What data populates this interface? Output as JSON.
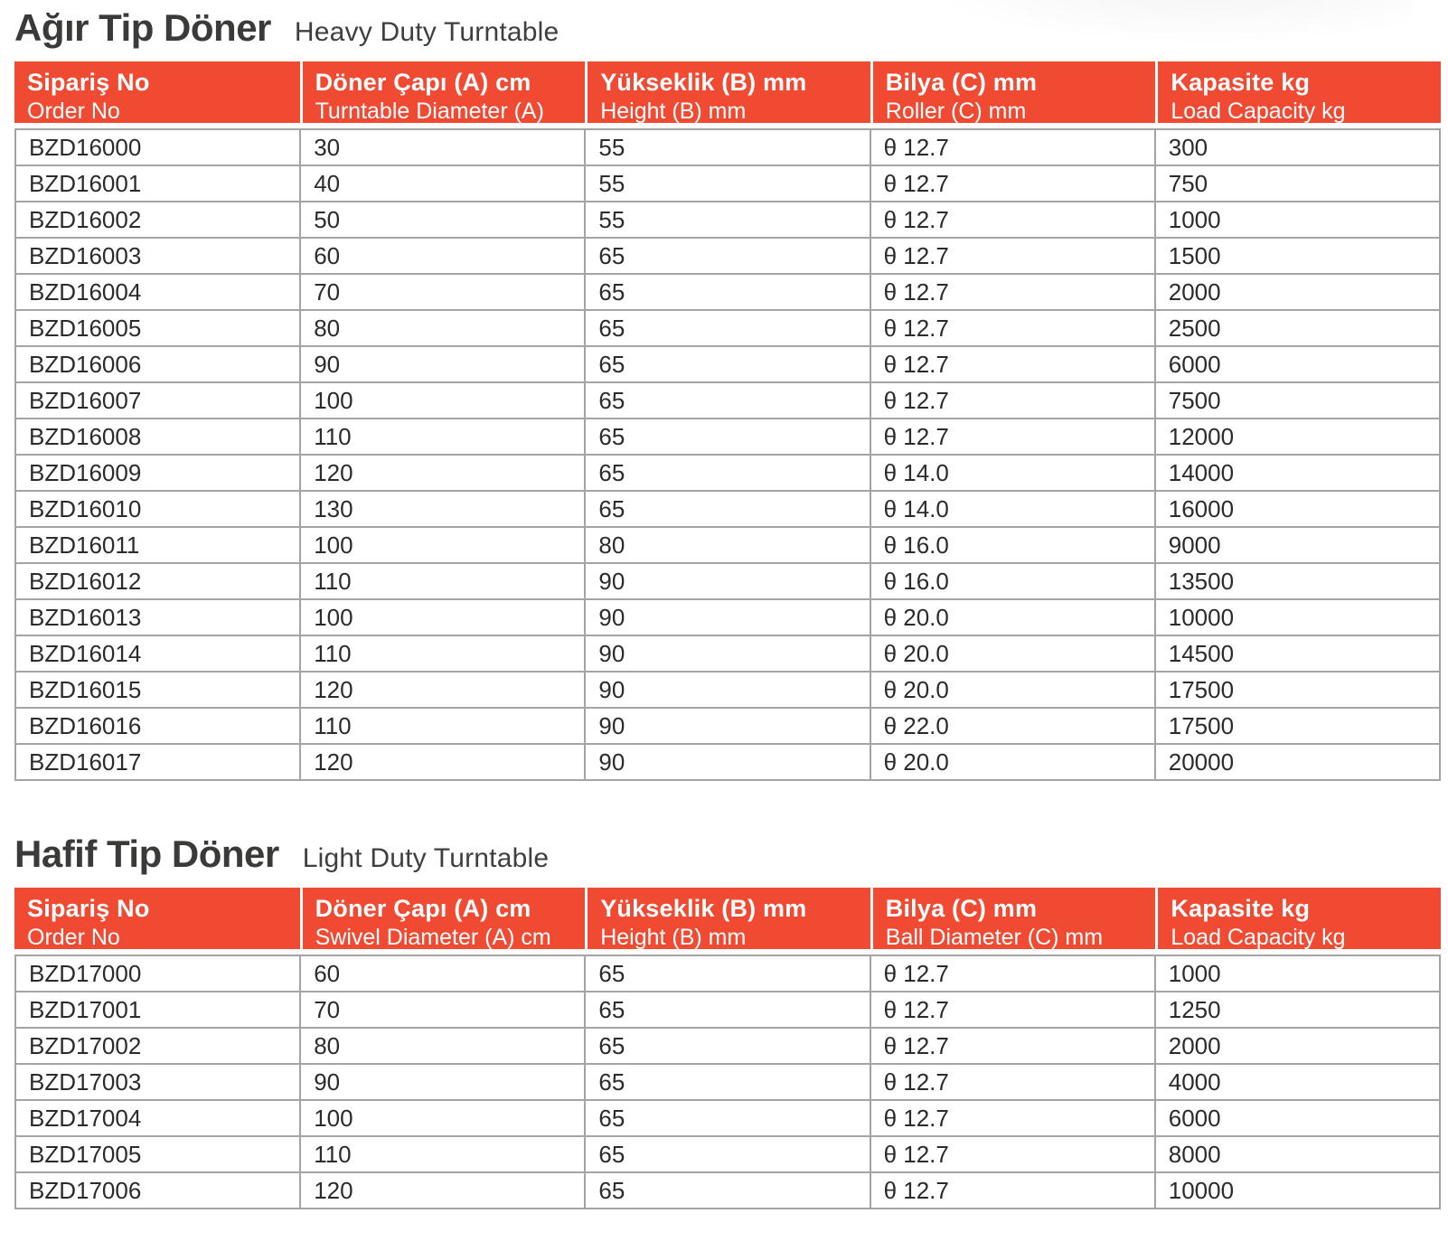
{
  "accent_color": "#f04a33",
  "border_color": "#a3a3a3",
  "title_color": "#3a3a39",
  "sections": [
    {
      "title_tr": "Ağır Tip Döner",
      "title_en": "Heavy Duty Turntable",
      "columns": [
        {
          "tr": "Sipariş No",
          "en": "Order No"
        },
        {
          "tr": "Döner Çapı (A) cm",
          "en": "Turntable Diameter (A) cm"
        },
        {
          "tr": "Yükseklik (B) mm",
          "en": "Height (B) mm"
        },
        {
          "tr": "Bilya (C) mm",
          "en": "Roller (C) mm"
        },
        {
          "tr": "Kapasite kg",
          "en": "Load Capacity kg"
        }
      ],
      "rows": [
        [
          "BZD16000",
          "30",
          "55",
          "θ 12.7",
          "300"
        ],
        [
          "BZD16001",
          "40",
          "55",
          "θ 12.7",
          "750"
        ],
        [
          "BZD16002",
          "50",
          "55",
          "θ 12.7",
          "1000"
        ],
        [
          "BZD16003",
          "60",
          "65",
          "θ 12.7",
          "1500"
        ],
        [
          "BZD16004",
          "70",
          "65",
          "θ 12.7",
          "2000"
        ],
        [
          "BZD16005",
          "80",
          "65",
          "θ 12.7",
          "2500"
        ],
        [
          "BZD16006",
          "90",
          "65",
          "θ 12.7",
          "6000"
        ],
        [
          "BZD16007",
          "100",
          "65",
          "θ 12.7",
          "7500"
        ],
        [
          "BZD16008",
          "110",
          "65",
          "θ 12.7",
          "12000"
        ],
        [
          "BZD16009",
          "120",
          "65",
          "θ 14.0",
          "14000"
        ],
        [
          "BZD16010",
          "130",
          "65",
          "θ 14.0",
          "16000"
        ],
        [
          "BZD16011",
          "100",
          "80",
          "θ 16.0",
          "9000"
        ],
        [
          "BZD16012",
          "110",
          "90",
          "θ 16.0",
          "13500"
        ],
        [
          "BZD16013",
          "100",
          "90",
          "θ 20.0",
          "10000"
        ],
        [
          "BZD16014",
          "110",
          "90",
          "θ 20.0",
          "14500"
        ],
        [
          "BZD16015",
          "120",
          "90",
          "θ 20.0",
          "17500"
        ],
        [
          "BZD16016",
          "110",
          "90",
          "θ 22.0",
          "17500"
        ],
        [
          "BZD16017",
          "120",
          "90",
          "θ 20.0",
          "20000"
        ]
      ]
    },
    {
      "title_tr": "Hafif Tip Döner",
      "title_en": "Light Duty Turntable",
      "columns": [
        {
          "tr": "Sipariş No",
          "en": "Order No"
        },
        {
          "tr": "Döner Çapı (A) cm",
          "en": "Swivel Diameter (A) cm"
        },
        {
          "tr": "Yükseklik (B) mm",
          "en": "Height (B) mm"
        },
        {
          "tr": "Bilya (C) mm",
          "en": "Ball Diameter (C) mm"
        },
        {
          "tr": "Kapasite kg",
          "en": "Load Capacity kg"
        }
      ],
      "rows": [
        [
          "BZD17000",
          "60",
          "65",
          "θ 12.7",
          "1000"
        ],
        [
          "BZD17001",
          "70",
          "65",
          "θ 12.7",
          "1250"
        ],
        [
          "BZD17002",
          "80",
          "65",
          "θ 12.7",
          "2000"
        ],
        [
          "BZD17003",
          "90",
          "65",
          "θ 12.7",
          "4000"
        ],
        [
          "BZD17004",
          "100",
          "65",
          "θ 12.7",
          "6000"
        ],
        [
          "BZD17005",
          "110",
          "65",
          "θ 12.7",
          "8000"
        ],
        [
          "BZD17006",
          "120",
          "65",
          "θ 12.7",
          "10000"
        ]
      ]
    }
  ]
}
